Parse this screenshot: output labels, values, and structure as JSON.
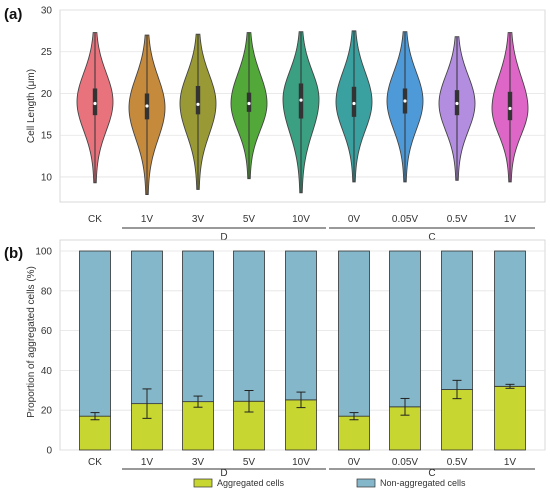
{
  "chart_data": [
    {
      "type": "violin",
      "panel_label": "(a)",
      "ylabel": "Cell Length (μm)",
      "ylim": [
        7,
        30
      ],
      "yticks": [
        10,
        15,
        20,
        25,
        30
      ],
      "categories": [
        "CK",
        "1V",
        "3V",
        "5V",
        "10V",
        "0V",
        "0.05V",
        "0.5V",
        "1V"
      ],
      "groups": [
        {
          "label": "D",
          "members": [
            1,
            2,
            3,
            4
          ]
        },
        {
          "label": "C",
          "members": [
            5,
            6,
            7,
            8
          ]
        }
      ],
      "series": [
        {
          "category": "CK",
          "color": "#e8737d",
          "min": 9.3,
          "max": 27.3,
          "q1": 17.4,
          "median": 18.8,
          "q3": 20.6,
          "mode": 19.0
        },
        {
          "category": "1V",
          "color": "#c68a3c",
          "min": 7.9,
          "max": 27.0,
          "q1": 16.9,
          "median": 18.5,
          "q3": 20.0,
          "mode": 18.3
        },
        {
          "category": "3V",
          "color": "#999a36",
          "min": 8.5,
          "max": 27.1,
          "q1": 17.5,
          "median": 18.7,
          "q3": 20.9,
          "mode": 18.8
        },
        {
          "category": "5V",
          "color": "#53a83a",
          "min": 9.8,
          "max": 27.3,
          "q1": 17.8,
          "median": 18.8,
          "q3": 20.1,
          "mode": 18.8
        },
        {
          "category": "10V",
          "color": "#3b9f82",
          "min": 8.1,
          "max": 27.4,
          "q1": 17.0,
          "median": 19.2,
          "q3": 21.2,
          "mode": 19.3
        },
        {
          "category": "0V",
          "color": "#3aa1a0",
          "min": 9.4,
          "max": 27.5,
          "q1": 17.2,
          "median": 18.8,
          "q3": 20.8,
          "mode": 19.0
        },
        {
          "category": "0.05V",
          "color": "#4e9ad8",
          "min": 9.4,
          "max": 27.4,
          "q1": 17.6,
          "median": 19.1,
          "q3": 20.6,
          "mode": 19.1
        },
        {
          "category": "0.5V",
          "color": "#b38ee0",
          "min": 9.6,
          "max": 26.8,
          "q1": 17.4,
          "median": 18.8,
          "q3": 20.4,
          "mode": 18.8
        },
        {
          "category": "1V",
          "color": "#dd66c6",
          "min": 9.4,
          "max": 27.3,
          "q1": 16.8,
          "median": 18.2,
          "q3": 20.2,
          "mode": 18.2
        }
      ],
      "grid": true
    },
    {
      "type": "bar",
      "stacked": true,
      "panel_label": "(b)",
      "ylabel": "Proportion of aggregated cells (%)",
      "ylim": [
        0,
        100
      ],
      "yticks": [
        0,
        20,
        40,
        60,
        80,
        100
      ],
      "categories": [
        "CK",
        "1V",
        "3V",
        "5V",
        "10V",
        "0V",
        "0.05V",
        "0.5V",
        "1V"
      ],
      "groups": [
        {
          "label": "D",
          "members": [
            1,
            2,
            3,
            4
          ]
        },
        {
          "label": "C",
          "members": [
            5,
            6,
            7,
            8
          ]
        }
      ],
      "series": [
        {
          "name": "Aggregated cells",
          "color": "#c7d630",
          "values": [
            17.0,
            23.3,
            24.3,
            24.5,
            25.2,
            17.0,
            21.7,
            30.4,
            32.0
          ],
          "error": [
            1.8,
            7.4,
            2.8,
            5.4,
            3.9,
            1.8,
            4.2,
            4.6,
            1.0
          ]
        },
        {
          "name": "Non-aggregated cells",
          "color": "#84b7c9",
          "values": [
            83.0,
            76.7,
            75.7,
            75.5,
            74.8,
            83.0,
            78.3,
            69.6,
            68.0
          ]
        }
      ],
      "legend_position": "bottom-center",
      "grid": true
    }
  ]
}
